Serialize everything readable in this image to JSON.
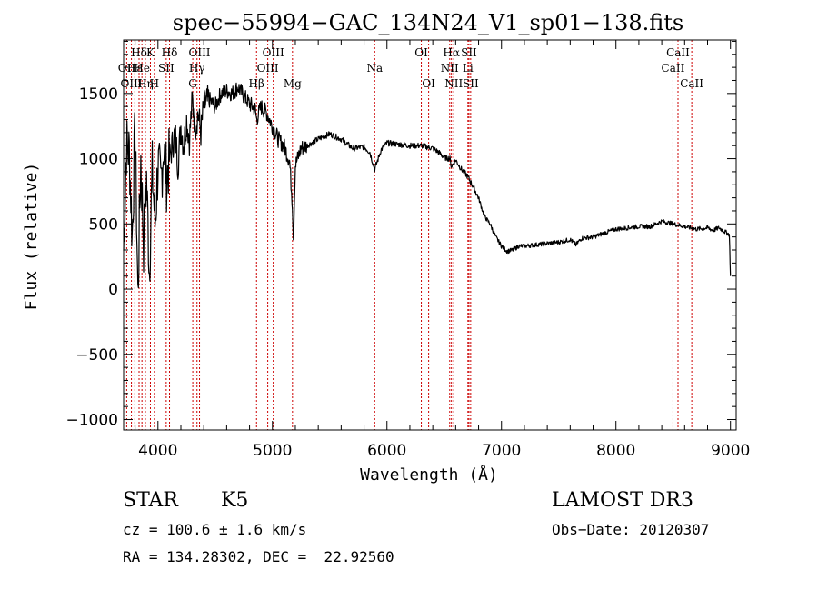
{
  "chart_data": {
    "type": "line",
    "title": "spec−55994−GAC_134N24_V1_sp01−138.fits",
    "xlabel": "Wavelength (Å)",
    "ylabel": "Flux (relative)",
    "xlim": [
      3700,
      9050
    ],
    "ylim": [
      -1080,
      1910
    ],
    "xticks": [
      4000,
      5000,
      6000,
      7000,
      8000,
      9000
    ],
    "xtick_labels": [
      "4000",
      "5000",
      "6000",
      "7000",
      "8000",
      "9000"
    ],
    "yticks": [
      -1000,
      -500,
      0,
      500,
      1000,
      1500
    ],
    "ytick_labels": [
      "−1000",
      "−500",
      "0",
      "500",
      "1000",
      "1500"
    ],
    "grid": false,
    "series": [
      {
        "name": "spectrum",
        "x": [
          3700,
          3725,
          3750,
          3775,
          3800,
          3825,
          3850,
          3875,
          3900,
          3925,
          3950,
          3975,
          4000,
          4025,
          4050,
          4075,
          4100,
          4125,
          4150,
          4175,
          4200,
          4225,
          4250,
          4275,
          4300,
          4325,
          4350,
          4375,
          4400,
          4450,
          4500,
          4550,
          4600,
          4650,
          4700,
          4750,
          4800,
          4850,
          4861,
          4900,
          4950,
          5000,
          5050,
          5100,
          5150,
          5175,
          5183,
          5200,
          5250,
          5300,
          5400,
          5500,
          5600,
          5700,
          5800,
          5850,
          5893,
          5950,
          6000,
          6100,
          6200,
          6300,
          6400,
          6450,
          6500,
          6550,
          6563,
          6600,
          6650,
          6700,
          6750,
          6800,
          6850,
          6900,
          6950,
          7000,
          7050,
          7100,
          7150,
          7200,
          7300,
          7400,
          7500,
          7600,
          7650,
          7700,
          7800,
          7900,
          8000,
          8100,
          8200,
          8300,
          8400,
          8500,
          8600,
          8700,
          8800,
          8850,
          8900,
          8950,
          8990,
          9000
        ],
        "y": [
          300,
          1100,
          1050,
          400,
          1250,
          -50,
          1000,
          350,
          850,
          150,
          900,
          500,
          950,
          800,
          1100,
          850,
          1000,
          1100,
          1200,
          950,
          1250,
          1100,
          1300,
          1150,
          1450,
          1250,
          1350,
          1200,
          1400,
          1450,
          1400,
          1500,
          1520,
          1500,
          1550,
          1480,
          1420,
          1380,
          1300,
          1400,
          1350,
          1250,
          1150,
          1100,
          980,
          650,
          400,
          950,
          1080,
          1100,
          1150,
          1190,
          1150,
          1080,
          1090,
          1050,
          920,
          1070,
          1120,
          1110,
          1100,
          1100,
          1080,
          1050,
          1010,
          1000,
          940,
          990,
          920,
          870,
          790,
          700,
          560,
          500,
          400,
          330,
          290,
          300,
          330,
          330,
          340,
          350,
          360,
          380,
          340,
          390,
          400,
          430,
          460,
          470,
          480,
          480,
          520,
          500,
          480,
          460,
          470,
          450,
          470,
          440,
          420,
          100
        ]
      }
    ],
    "annotations": {
      "lines": [
        {
          "label": "Hδ",
          "x": 3835,
          "row": 1
        },
        {
          "label": "OII",
          "x": 3727,
          "row": 2
        },
        {
          "label": "OIII",
          "x": 3768,
          "row": 3
        },
        {
          "label": "Hε",
          "x": 3798,
          "row": 2
        },
        {
          "label": "He",
          "x": 3860,
          "row": 2
        },
        {
          "label": "Hη",
          "x": 3890,
          "row": 3
        },
        {
          "label": "K",
          "x": 3934,
          "row": 1
        },
        {
          "label": "H",
          "x": 3969,
          "row": 3
        },
        {
          "label": "SII",
          "x": 4072,
          "row": 2
        },
        {
          "label": "Hδ",
          "x": 4101,
          "row": 1
        },
        {
          "label": "G",
          "x": 4304,
          "row": 3
        },
        {
          "label": "Hγ",
          "x": 4341,
          "row": 2
        },
        {
          "label": "OIII",
          "x": 4363,
          "row": 1
        },
        {
          "label": "Hβ",
          "x": 4861,
          "row": 3
        },
        {
          "label": "OIII",
          "x": 4959,
          "row": 2
        },
        {
          "label": "OIII",
          "x": 5007,
          "row": 1
        },
        {
          "label": "Mg",
          "x": 5175,
          "row": 3
        },
        {
          "label": "Na",
          "x": 5893,
          "row": 2
        },
        {
          "label": "OI",
          "x": 6300,
          "row": 1
        },
        {
          "label": "OI",
          "x": 6364,
          "row": 3
        },
        {
          "label": "NII",
          "x": 6548,
          "row": 2
        },
        {
          "label": "Hα",
          "x": 6563,
          "row": 1
        },
        {
          "label": "NII",
          "x": 6583,
          "row": 3
        },
        {
          "label": "Li",
          "x": 6707,
          "row": 2
        },
        {
          "label": "SII",
          "x": 6716,
          "row": 1
        },
        {
          "label": "SII",
          "x": 6731,
          "row": 3
        },
        {
          "label": "CaII",
          "x": 8498,
          "row": 2
        },
        {
          "label": "CaII",
          "x": 8542,
          "row": 1
        },
        {
          "label": "CaII",
          "x": 8662,
          "row": 3
        }
      ]
    }
  },
  "info": {
    "class": "STAR",
    "subclass": "K5",
    "survey": "LAMOST DR3",
    "redshift": "cz = 100.6 ± 1.6 km/s",
    "obs_date": "Obs−Date: 20120307",
    "coords": "RA = 134.28302, DEC =  22.92560"
  },
  "colors": {
    "line_marker": "#cc0000",
    "spectrum": "#000000",
    "axis": "#000000"
  }
}
